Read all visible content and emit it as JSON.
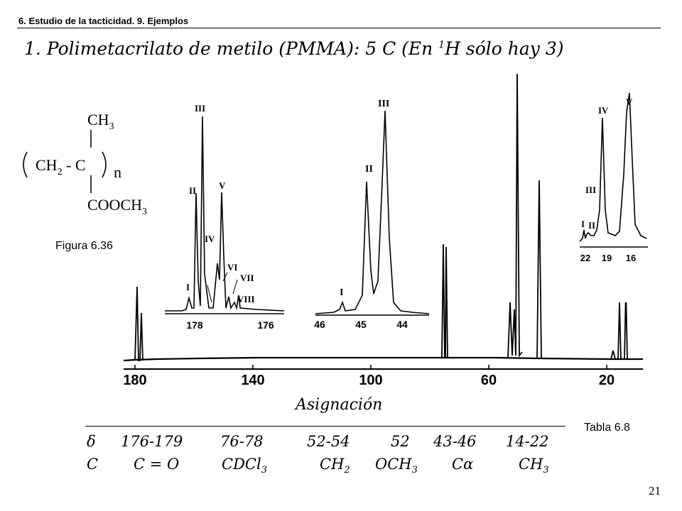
{
  "header": {
    "section": "6. Estudio de la tacticidad. 9. Ejemplos"
  },
  "title": {
    "main": "1. Polimetacrilato de metilo (PMMA): 5 C (En ",
    "sup": "1",
    "rest": "H sólo hay 3)"
  },
  "figure": {
    "label": "Figura 6.36",
    "structure": {
      "top": "CH",
      "top_sub": "3",
      "mid_left": "CH",
      "mid_sub": "2",
      "mid_right": " - C",
      "n": "n",
      "bottom": "COOCH",
      "bottom_sub": "3"
    },
    "spectrum": {
      "axis_ticks": [
        "180",
        "140",
        "100",
        "60",
        "20"
      ],
      "inset1": {
        "ticks": [
          "178",
          "176"
        ],
        "peaks": [
          "I",
          "II",
          "III",
          "IV",
          "V",
          "VI",
          "VII",
          "VIII"
        ]
      },
      "inset2": {
        "ticks": [
          "46",
          "45",
          "44"
        ],
        "peaks": [
          "I",
          "II",
          "III"
        ]
      },
      "inset3": {
        "ticks": [
          "22",
          "19",
          "16"
        ],
        "peaks": [
          "I",
          "II",
          "III",
          "IV",
          "V"
        ]
      }
    }
  },
  "table": {
    "label": "Tabla 6.8",
    "title": "Asignación",
    "row1": [
      "δ",
      "176-179",
      "76-78",
      "52-54",
      "52",
      "43-46",
      "14-22"
    ],
    "row2": [
      {
        "t": "C"
      },
      {
        "t": "C = O"
      },
      {
        "t": "CDCl",
        "s": "3"
      },
      {
        "t": "CH",
        "s": "2"
      },
      {
        "t": "OCH",
        "s": "3"
      },
      {
        "t": "Cα"
      },
      {
        "t": "CH",
        "s": "3"
      }
    ]
  },
  "page": {
    "number": "21"
  }
}
